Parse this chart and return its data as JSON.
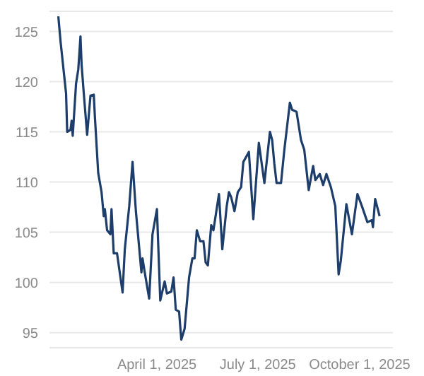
{
  "chart_data": {
    "type": "line",
    "x": [
      "2025-01-02",
      "2025-01-04",
      "2025-01-09",
      "2025-01-10",
      "2025-01-13",
      "2025-01-14",
      "2025-01-15",
      "2025-01-18",
      "2025-01-20",
      "2025-01-22",
      "2025-01-23",
      "2025-01-25",
      "2025-01-28",
      "2025-01-31",
      "2025-02-03",
      "2025-02-04",
      "2025-02-07",
      "2025-02-10",
      "2025-02-12",
      "2025-02-13",
      "2025-02-15",
      "2025-02-18",
      "2025-02-19",
      "2025-02-21",
      "2025-02-24",
      "2025-03-01",
      "2025-03-03",
      "2025-03-07",
      "2025-03-10",
      "2025-03-13",
      "2025-03-18",
      "2025-03-19",
      "2025-03-21",
      "2025-03-25",
      "2025-03-28",
      "2025-04-01",
      "2025-04-04",
      "2025-04-08",
      "2025-04-10",
      "2025-04-14",
      "2025-04-16",
      "2025-04-18",
      "2025-04-21",
      "2025-04-23",
      "2025-04-26",
      "2025-04-30",
      "2025-05-03",
      "2025-05-05",
      "2025-05-07",
      "2025-05-10",
      "2025-05-13",
      "2025-05-15",
      "2025-05-17",
      "2025-05-20",
      "2025-05-22",
      "2025-05-27",
      "2025-05-30",
      "2025-06-03",
      "2025-06-05",
      "2025-06-07",
      "2025-06-10",
      "2025-06-13",
      "2025-06-16",
      "2025-06-18",
      "2025-06-23",
      "2025-06-27",
      "2025-07-02",
      "2025-07-07",
      "2025-07-12",
      "2025-07-14",
      "2025-07-16",
      "2025-07-18",
      "2025-07-22",
      "2025-07-25",
      "2025-07-30",
      "2025-08-01",
      "2025-08-05",
      "2025-08-09",
      "2025-08-12",
      "2025-08-16",
      "2025-08-20",
      "2025-08-22",
      "2025-08-26",
      "2025-08-29",
      "2025-09-01",
      "2025-09-05",
      "2025-09-09",
      "2025-09-12",
      "2025-09-14",
      "2025-09-19",
      "2025-09-24",
      "2025-09-29",
      "2025-10-03",
      "2025-10-08",
      "2025-10-12",
      "2025-10-13",
      "2025-10-15",
      "2025-10-19"
    ],
    "series": [
      {
        "color": "#1d3d6b",
        "values": [
          126.5,
          124,
          118.8,
          115,
          115.2,
          116.1,
          114.6,
          119.8,
          121.2,
          124.5,
          121.7,
          118.8,
          114.7,
          118.6,
          118.7,
          116.5,
          110.9,
          109,
          106.6,
          107.3,
          105.2,
          104.8,
          107.3,
          102.9,
          102.9,
          99,
          103.3,
          107.6,
          112,
          107.1,
          101,
          102.4,
          101,
          98.4,
          104.8,
          107.3,
          98.2,
          100.1,
          98.9,
          99.1,
          100.5,
          97.3,
          97.1,
          94.3,
          95.4,
          100.5,
          102.4,
          102.4,
          105.2,
          104.1,
          104.1,
          102,
          101.7,
          105.7,
          105.2,
          108.8,
          103.3,
          107.6,
          109,
          108.5,
          107.1,
          109,
          109.5,
          112,
          113,
          106.3,
          113.9,
          109.9,
          115,
          114.2,
          111.8,
          109.9,
          109.9,
          113.2,
          117.9,
          117.2,
          117,
          114.2,
          113.2,
          109.2,
          111.6,
          110.2,
          110.8,
          109.7,
          110.8,
          109.5,
          107.6,
          100.8,
          102.2,
          107.8,
          104.8,
          108.8,
          107.6,
          106,
          106.2,
          105.5,
          108.3,
          106.6
        ]
      }
    ],
    "xlim": [
      "2024-12-25",
      "2025-10-31"
    ],
    "xticks": [
      {
        "value": "2025-04-01",
        "label": "April 1, 2025"
      },
      {
        "value": "2025-07-01",
        "label": "July 1, 2025"
      },
      {
        "value": "2025-10-01",
        "label": "October 1, 2025"
      }
    ],
    "ylim": [
      93.5,
      127
    ],
    "yticks": [
      95,
      100,
      105,
      110,
      115,
      120,
      125
    ],
    "grid": "y",
    "legend": false,
    "marker": "none",
    "line_style": "solid"
  }
}
